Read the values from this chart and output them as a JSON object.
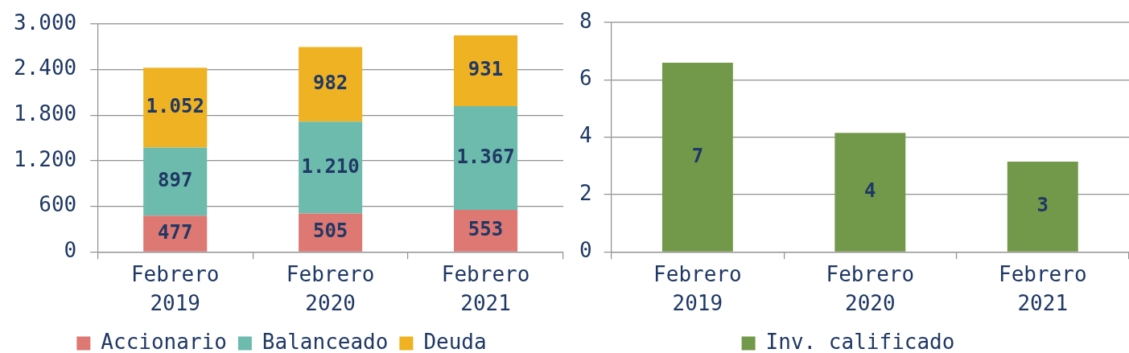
{
  "chart_data": [
    {
      "type": "bar",
      "stacked": true,
      "categories": [
        "Febrero 2019",
        "Febrero 2020",
        "Febrero 2021"
      ],
      "series": [
        {
          "name": "Accionario",
          "color": "#dd7873",
          "values": [
            477,
            505,
            553
          ],
          "value_labels": [
            "477",
            "505",
            "553"
          ]
        },
        {
          "name": "Balanceado",
          "color": "#6dbbad",
          "values": [
            897,
            1210,
            1367
          ],
          "value_labels": [
            "897",
            "1.210",
            "1.367"
          ]
        },
        {
          "name": "Deuda",
          "color": "#efb223",
          "values": [
            1052,
            982,
            931
          ],
          "value_labels": [
            "1.052",
            "982",
            "931"
          ]
        }
      ],
      "ylim": [
        0,
        3000
      ],
      "yticks": [
        0,
        600,
        {
          "value": 1200,
          "label": "1.200"
        },
        {
          "value": 1800,
          "label": "1.800"
        },
        {
          "value": 2400,
          "label": "2.400"
        },
        {
          "value": 3000,
          "label": "3.000"
        }
      ],
      "grid": "y",
      "legend": "bottom"
    },
    {
      "type": "bar",
      "categories": [
        "Febrero 2019",
        "Febrero 2020",
        "Febrero 2021"
      ],
      "series": [
        {
          "name": "Inv. calificado",
          "color": "#72994a",
          "values": [
            6.6,
            4.15,
            3.15
          ],
          "value_labels": [
            "7",
            "4",
            "3"
          ]
        }
      ],
      "ylim": [
        0,
        8
      ],
      "yticks": [
        0,
        2,
        4,
        6,
        8
      ],
      "grid": "y",
      "legend": "bottom"
    }
  ]
}
